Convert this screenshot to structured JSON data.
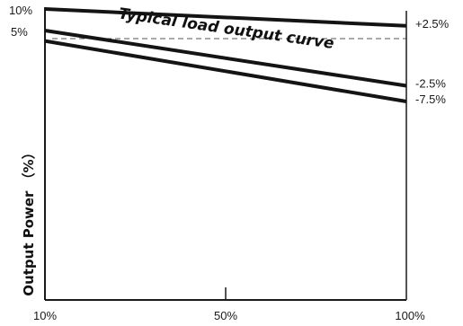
{
  "chart_data": {
    "type": "line",
    "title": "",
    "xlabel": "",
    "ylabel": "Output Power （%）",
    "x_ticks": [
      "10%",
      "50%",
      "100%"
    ],
    "y_ticks": [
      "10%",
      "5%"
    ],
    "xlim": [
      10,
      100
    ],
    "ylim": [
      -40,
      10
    ],
    "grid": false,
    "legend": "none",
    "series": [
      {
        "values": [
          [
            10,
            10
          ],
          [
            100,
            7.1
          ]
        ],
        "label": "+2.5%"
      },
      {
        "values": [
          [
            10,
            6.3
          ],
          [
            100,
            -3.2
          ]
        ],
        "label": "-2.5%"
      },
      {
        "values": [
          [
            10,
            4.5
          ],
          [
            100,
            -5.9
          ]
        ],
        "label": "-7.5%"
      }
    ],
    "reference_line": {
      "y": 4.9,
      "style": "dashed"
    },
    "annotation": {
      "text": "Typical load output curve",
      "x": 55,
      "y": 5.8,
      "angle": 8
    },
    "colors": {
      "lines": "#141414",
      "axes": "#1a1a1a",
      "dash": "#555555"
    }
  }
}
